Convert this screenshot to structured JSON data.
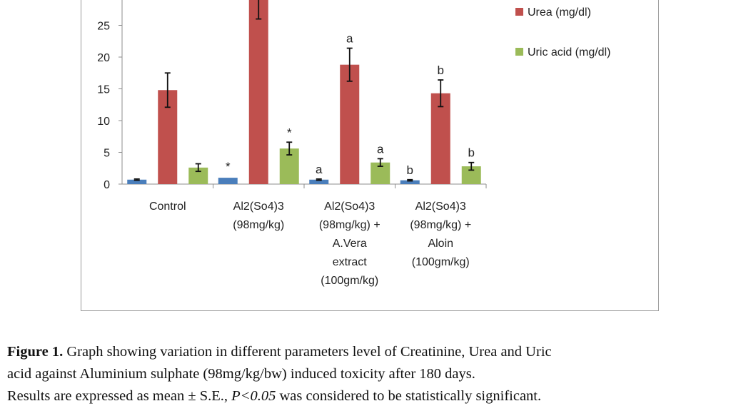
{
  "chart_data": {
    "type": "bar",
    "categories": [
      [
        "Control"
      ],
      [
        "Al2(So4)3",
        "(98mg/kg)"
      ],
      [
        "Al2(So4)3",
        "(98mg/kg) +",
        "A.Vera",
        "extract",
        "(100gm/kg)"
      ],
      [
        "Al2(So4)3",
        "(98mg/kg) +",
        "Aloin",
        "(100gm/kg)"
      ]
    ],
    "series": [
      {
        "name": "",
        "color": "#4a7ebb",
        "values": [
          0.7,
          1.0,
          0.7,
          0.6
        ],
        "errors": [
          0.1,
          0.0,
          0.1,
          0.1
        ],
        "labels": [
          "",
          "*",
          "a",
          "b"
        ]
      },
      {
        "name": "Urea (mg/dl)",
        "color": "#c0504d",
        "values": [
          14.8,
          29.5,
          18.8,
          14.3
        ],
        "errors": [
          2.7,
          3.5,
          2.6,
          2.1
        ],
        "labels": [
          "",
          "",
          "a",
          "b"
        ]
      },
      {
        "name": "Uric acid (mg/dl)",
        "color": "#9bbb59",
        "values": [
          2.6,
          5.6,
          3.4,
          2.8
        ],
        "errors": [
          0.6,
          1.0,
          0.6,
          0.6
        ],
        "labels": [
          "",
          "*",
          "a",
          "b"
        ]
      }
    ],
    "yticks": [
      0,
      5,
      10,
      15,
      20,
      25
    ],
    "ylim": [
      0,
      30
    ],
    "legend_position": "right",
    "grid": false
  },
  "caption": {
    "figure_label": "Figure 1.",
    "line1_rest": " Graph showing variation in different parameters level of Creatinine, Urea and Uric",
    "line2": "acid against Aluminium sulphate (98mg/kg/bw) induced toxicity after 180 days.",
    "line3_pre": "Results are expressed as mean ± S.E., ",
    "line3_italic": "P<0.05",
    "line3_post": " was considered to be statistically significant."
  }
}
